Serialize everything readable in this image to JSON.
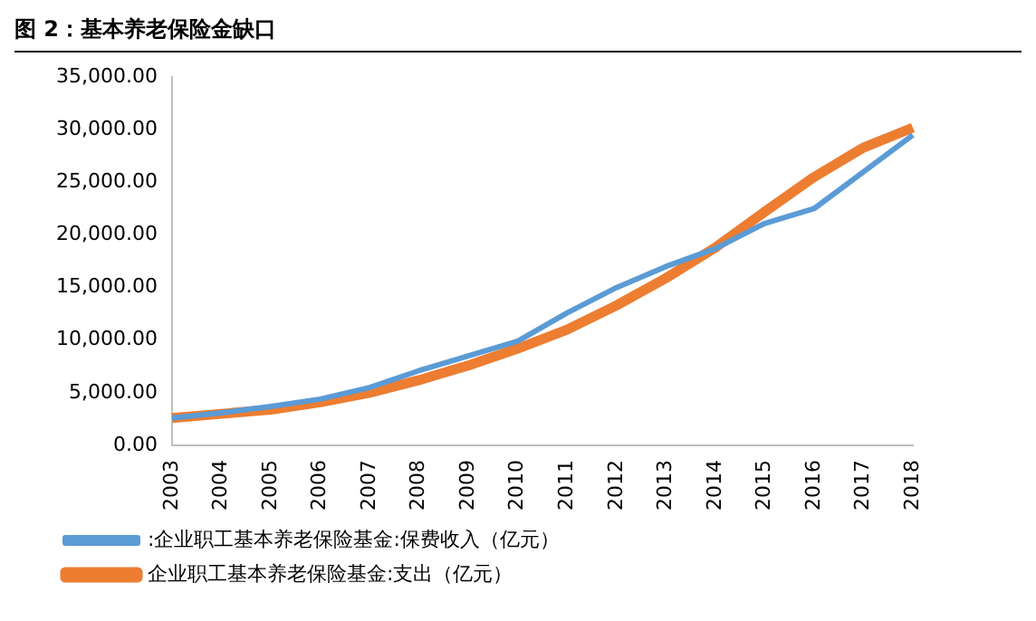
{
  "chart_data": {
    "type": "line",
    "title": "图 2：基本养老保险金缺口",
    "categories": [
      "2003",
      "2004",
      "2005",
      "2006",
      "2007",
      "2008",
      "2009",
      "2010",
      "2011",
      "2012",
      "2013",
      "2014",
      "2015",
      "2016",
      "2017",
      "2018"
    ],
    "series": [
      {
        "name": ":企业职工基本养老保险基金:保费收入（亿元）",
        "color": "#5b9bd5",
        "values": [
          2600,
          3100,
          3700,
          4400,
          5500,
          7100,
          8500,
          9900,
          12600,
          15000,
          17000,
          18700,
          21100,
          22500,
          26000,
          29500
        ]
      },
      {
        "name": "企业职工基本养老保险基金:支出（亿元）",
        "color": "#ed7d31",
        "values": [
          2600,
          3000,
          3400,
          4100,
          5000,
          6200,
          7600,
          9200,
          11000,
          13300,
          15900,
          18800,
          22200,
          25500,
          28300,
          30200
        ]
      }
    ],
    "ylim": [
      0,
      35000
    ],
    "yticks": [
      {
        "value": 0,
        "label": "0.00"
      },
      {
        "value": 5000,
        "label": "5,000.00"
      },
      {
        "value": 10000,
        "label": "10,000.00"
      },
      {
        "value": 15000,
        "label": "15,000.00"
      },
      {
        "value": 20000,
        "label": "20,000.00"
      },
      {
        "value": 25000,
        "label": "25,000.00"
      },
      {
        "value": 30000,
        "label": "30,000.00"
      },
      {
        "value": 35000,
        "label": "35,000.00"
      }
    ],
    "grid": false,
    "legend": "bottom",
    "marker": "none",
    "line_style": "solid"
  }
}
